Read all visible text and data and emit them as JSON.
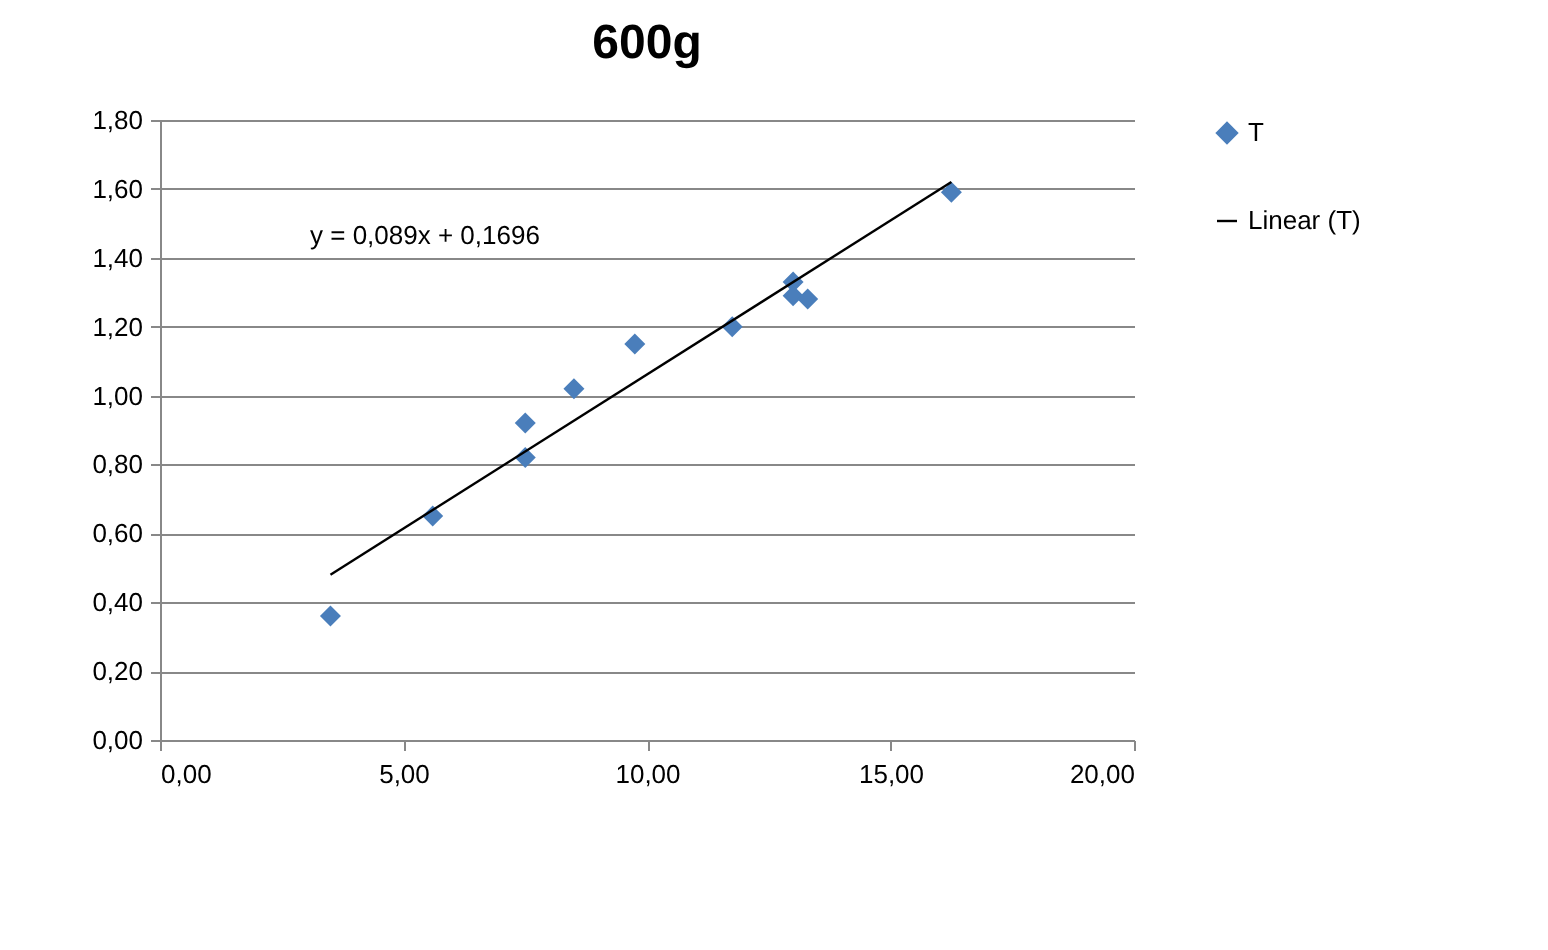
{
  "chart_data": {
    "type": "scatter",
    "title": "600g",
    "xlim": [
      0,
      20
    ],
    "xticks": [
      {
        "value": 0,
        "label": "0,00"
      },
      {
        "value": 5,
        "label": "5,00"
      },
      {
        "value": 10,
        "label": "10,00"
      },
      {
        "value": 15,
        "label": "15,00"
      },
      {
        "value": 20,
        "label": "20,00"
      }
    ],
    "ylim": [
      0,
      1.8
    ],
    "yticks": [
      {
        "value": 0,
        "label": "0,00"
      },
      {
        "value": 0.2,
        "label": "0,20"
      },
      {
        "value": 0.4,
        "label": "0,40"
      },
      {
        "value": 0.6,
        "label": "0,60"
      },
      {
        "value": 0.8,
        "label": "0,80"
      },
      {
        "value": 1.0,
        "label": "1,00"
      },
      {
        "value": 1.2,
        "label": "1,20"
      },
      {
        "value": 1.4,
        "label": "1,40"
      },
      {
        "value": 1.6,
        "label": "1,60"
      },
      {
        "value": 1.8,
        "label": "1,80"
      }
    ],
    "grid": "y",
    "legend": "right",
    "series": [
      {
        "name": "T",
        "type": "scatter",
        "marker": "diamond",
        "color": "#4a7ebb",
        "x": [
          3.5,
          5.6,
          7.5,
          7.5,
          8.5,
          9.75,
          11.75,
          13.0,
          13.0,
          13.3,
          16.25
        ],
        "values": [
          0.36,
          0.65,
          0.92,
          0.82,
          1.02,
          1.15,
          1.2,
          1.33,
          1.29,
          1.28,
          1.59
        ]
      },
      {
        "name": "Linear (T)",
        "type": "line",
        "marker": "none",
        "color": "#000000",
        "x": [
          3.5,
          16.25
        ],
        "values": [
          0.48,
          1.62
        ]
      }
    ],
    "annotations": [
      "y = 0,089x + 0,1696"
    ]
  }
}
